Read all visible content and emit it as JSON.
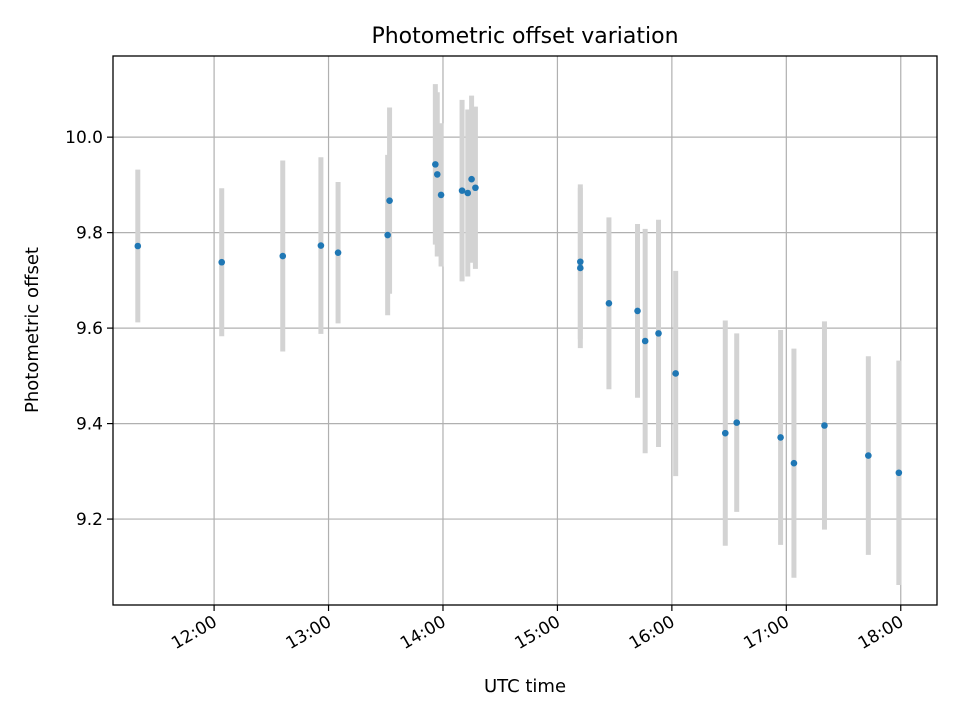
{
  "chart_data": {
    "type": "scatter",
    "title": "Photometric offset variation",
    "xlabel": "UTC time",
    "ylabel": "Photometric offset",
    "x_ticks": [
      "12:00",
      "13:00",
      "14:00",
      "15:00",
      "16:00",
      "17:00",
      "18:00"
    ],
    "x_tick_hours": [
      12,
      13,
      14,
      15,
      16,
      17,
      18
    ],
    "y_ticks": [
      "9.2",
      "9.4",
      "9.6",
      "9.8",
      "10.0"
    ],
    "y_tick_values": [
      9.2,
      9.4,
      9.6,
      9.8,
      10.0
    ],
    "xlim": [
      "11:07",
      "18:19"
    ],
    "ylim": [
      9.02,
      10.17
    ],
    "grid": true,
    "point_color": "#1f77b4",
    "errorbar_color": "#d3d3d3",
    "series": [
      {
        "points": [
          {
            "x": "11:20",
            "y": 9.772,
            "err": 0.16
          },
          {
            "x": "12:04",
            "y": 9.738,
            "err": 0.155
          },
          {
            "x": "12:36",
            "y": 9.751,
            "err": 0.2
          },
          {
            "x": "12:56",
            "y": 9.773,
            "err": 0.185
          },
          {
            "x": "13:05",
            "y": 9.758,
            "err": 0.148
          },
          {
            "x": "13:31",
            "y": 9.795,
            "err": 0.168
          },
          {
            "x": "13:32",
            "y": 9.867,
            "err": 0.195
          },
          {
            "x": "13:56",
            "y": 9.943,
            "err": 0.168
          },
          {
            "x": "13:57",
            "y": 9.922,
            "err": 0.172
          },
          {
            "x": "13:59",
            "y": 9.879,
            "err": 0.15
          },
          {
            "x": "14:10",
            "y": 9.888,
            "err": 0.19
          },
          {
            "x": "14:13",
            "y": 9.883,
            "err": 0.175
          },
          {
            "x": "14:15",
            "y": 9.912,
            "err": 0.175
          },
          {
            "x": "14:17",
            "y": 9.894,
            "err": 0.17
          },
          {
            "x": "15:12",
            "y": 9.739,
            "err": 0.162
          },
          {
            "x": "15:12",
            "y": 9.726,
            "err": 0.168
          },
          {
            "x": "15:27",
            "y": 9.652,
            "err": 0.18
          },
          {
            "x": "15:42",
            "y": 9.636,
            "err": 0.182
          },
          {
            "x": "15:46",
            "y": 9.573,
            "err": 0.235
          },
          {
            "x": "15:53",
            "y": 9.589,
            "err": 0.238
          },
          {
            "x": "16:02",
            "y": 9.505,
            "err": 0.215
          },
          {
            "x": "16:28",
            "y": 9.38,
            "err": 0.236
          },
          {
            "x": "16:34",
            "y": 9.402,
            "err": 0.187
          },
          {
            "x": "16:57",
            "y": 9.371,
            "err": 0.225
          },
          {
            "x": "17:04",
            "y": 9.317,
            "err": 0.24
          },
          {
            "x": "17:20",
            "y": 9.396,
            "err": 0.218
          },
          {
            "x": "17:43",
            "y": 9.333,
            "err": 0.208
          },
          {
            "x": "17:59",
            "y": 9.297,
            "err": 0.235
          }
        ]
      }
    ]
  }
}
